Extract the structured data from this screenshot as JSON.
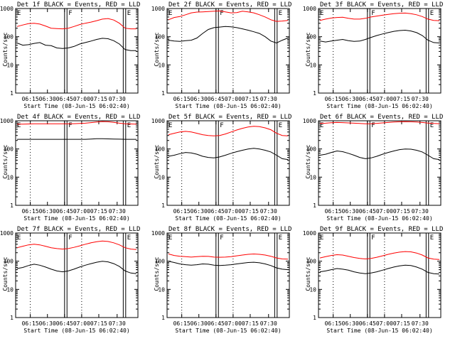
{
  "chart_data": [
    {
      "type": "line",
      "title": "Det 1f BLACK = Events, RED = LLD",
      "xlabel": "Start Time (08-Jun-15 06:02:40)",
      "ylabel": "Counts/sec",
      "series": [
        {
          "name": "Events",
          "color": "#000000",
          "values": [
            60,
            50,
            52,
            58,
            62,
            50,
            48,
            40,
            38,
            40,
            45,
            55,
            62,
            70,
            80,
            88,
            85,
            72,
            55,
            35,
            32,
            32
          ]
        },
        {
          "name": "LLD",
          "color": "#ff0000",
          "values": [
            230,
            260,
            290,
            300,
            280,
            240,
            200,
            195,
            190,
            200,
            230,
            270,
            300,
            330,
            370,
            420,
            440,
            390,
            300,
            200,
            190,
            190
          ]
        }
      ],
      "ymin": 1,
      "ymax": 1000
    },
    {
      "type": "line",
      "title": "Det 2f BLACK = Events, RED = LLD",
      "xlabel": "Start Time (08-Jun-15 06:02:40)",
      "ylabel": "Counts/sec",
      "series": [
        {
          "name": "Events",
          "color": "#000000",
          "values": [
            75,
            70,
            68,
            72,
            75,
            90,
            130,
            180,
            210,
            220,
            230,
            225,
            210,
            190,
            170,
            150,
            130,
            100,
            70,
            60,
            75,
            90
          ]
        },
        {
          "name": "LLD",
          "color": "#ff0000",
          "values": [
            400,
            480,
            520,
            600,
            700,
            750,
            760,
            780,
            800,
            820,
            760,
            700,
            720,
            800,
            760,
            700,
            600,
            500,
            400,
            350,
            360,
            380
          ]
        }
      ],
      "ymin": 1,
      "ymax": 1000
    },
    {
      "type": "line",
      "title": "Det 3f BLACK = Events, RED = LLD",
      "xlabel": "Start Time (08-Jun-15 06:02:40)",
      "ylabel": "Counts/sec",
      "series": [
        {
          "name": "Events",
          "color": "#000000",
          "values": [
            70,
            65,
            70,
            75,
            80,
            72,
            68,
            70,
            80,
            95,
            110,
            125,
            140,
            155,
            165,
            170,
            160,
            140,
            110,
            75,
            62,
            60
          ]
        },
        {
          "name": "LLD",
          "color": "#ff0000",
          "values": [
            380,
            420,
            460,
            480,
            490,
            450,
            420,
            420,
            450,
            500,
            540,
            580,
            620,
            660,
            680,
            690,
            660,
            600,
            520,
            420,
            380,
            370
          ]
        }
      ],
      "ymin": 1,
      "ymax": 1000
    },
    {
      "type": "line",
      "title": "Det 4f BLACK = Events, RED = LLD",
      "xlabel": "Start Time (08-Jun-15 06:02:40)",
      "ylabel": "Counts/sec",
      "series": [
        {
          "name": "Events",
          "color": "#000000",
          "values": [
            220,
            220,
            220,
            220,
            220,
            220,
            220,
            220,
            220,
            220,
            220,
            220,
            220,
            225,
            230,
            230,
            228,
            225,
            222,
            220,
            220,
            220
          ]
        },
        {
          "name": "LLD",
          "color": "#ff0000",
          "values": [
            760,
            760,
            770,
            780,
            780,
            780,
            780,
            780,
            780,
            780,
            790,
            800,
            820,
            860,
            900,
            940,
            920,
            880,
            820,
            780,
            770,
            760
          ]
        }
      ],
      "ymin": 1,
      "ymax": 1000
    },
    {
      "type": "line",
      "title": "Det 5f BLACK = Events, RED = LLD",
      "xlabel": "Start Time (08-Jun-15 06:02:40)",
      "ylabel": "Counts/sec",
      "series": [
        {
          "name": "Events",
          "color": "#000000",
          "values": [
            55,
            60,
            68,
            75,
            72,
            65,
            55,
            50,
            48,
            52,
            60,
            70,
            80,
            90,
            100,
            105,
            100,
            90,
            78,
            60,
            45,
            42
          ]
        },
        {
          "name": "LLD",
          "color": "#ff0000",
          "values": [
            320,
            360,
            400,
            420,
            400,
            360,
            320,
            300,
            290,
            300,
            340,
            400,
            470,
            540,
            600,
            640,
            620,
            560,
            480,
            360,
            300,
            290
          ]
        }
      ],
      "ymin": 1,
      "ymax": 1000
    },
    {
      "type": "line",
      "title": "Det 6f BLACK = Events, RED = LLD",
      "xlabel": "Start Time (08-Jun-15 06:02:40)",
      "ylabel": "Counts/sec",
      "series": [
        {
          "name": "Events",
          "color": "#000000",
          "values": [
            60,
            65,
            75,
            85,
            80,
            70,
            60,
            50,
            45,
            48,
            55,
            65,
            75,
            85,
            95,
            100,
            98,
            90,
            78,
            60,
            45,
            42
          ]
        },
        {
          "name": "LLD",
          "color": "#ff0000",
          "values": [
            800,
            820,
            850,
            870,
            860,
            840,
            820,
            800,
            780,
            790,
            810,
            840,
            870,
            900,
            920,
            930,
            920,
            900,
            870,
            830,
            800,
            790
          ]
        }
      ],
      "ymin": 1,
      "ymax": 1000
    },
    {
      "type": "line",
      "title": "Det 7f BLACK = Events, RED = LLD",
      "xlabel": "Start Time (08-Jun-15 06:02:40)",
      "ylabel": "Counts/sec",
      "series": [
        {
          "name": "Events",
          "color": "#000000",
          "values": [
            55,
            60,
            70,
            78,
            72,
            62,
            52,
            45,
            42,
            45,
            52,
            62,
            72,
            82,
            92,
            100,
            95,
            82,
            65,
            45,
            38,
            36
          ]
        },
        {
          "name": "LLD",
          "color": "#ff0000",
          "values": [
            300,
            340,
            380,
            400,
            380,
            340,
            300,
            280,
            270,
            280,
            310,
            350,
            400,
            450,
            490,
            520,
            500,
            450,
            380,
            300,
            270,
            260
          ]
        }
      ],
      "ymin": 1,
      "ymax": 1000
    },
    {
      "type": "line",
      "title": "Det 8f BLACK = Events, RED = LLD",
      "xlabel": "Start Time (08-Jun-15 06:02:40)",
      "ylabel": "Counts/sec",
      "series": [
        {
          "name": "Events",
          "color": "#000000",
          "values": [
            100,
            90,
            80,
            75,
            72,
            75,
            80,
            78,
            72,
            70,
            72,
            75,
            80,
            85,
            90,
            92,
            88,
            80,
            70,
            58,
            52,
            50
          ]
        },
        {
          "name": "LLD",
          "color": "#ff0000",
          "values": [
            180,
            160,
            150,
            145,
            140,
            145,
            150,
            148,
            140,
            138,
            140,
            145,
            155,
            165,
            175,
            180,
            175,
            165,
            150,
            130,
            120,
            118
          ]
        }
      ],
      "ymin": 1,
      "ymax": 1000
    },
    {
      "type": "line",
      "title": "Det 9f BLACK = Events, RED = LLD",
      "xlabel": "Start Time (08-Jun-15 06:02:40)",
      "ylabel": "Counts/sec",
      "series": [
        {
          "name": "Events",
          "color": "#000000",
          "values": [
            42,
            45,
            50,
            55,
            52,
            48,
            42,
            38,
            36,
            38,
            42,
            48,
            55,
            62,
            68,
            72,
            70,
            62,
            52,
            40,
            36,
            35
          ]
        },
        {
          "name": "LLD",
          "color": "#ff0000",
          "values": [
            130,
            145,
            160,
            170,
            165,
            150,
            135,
            125,
            120,
            125,
            138,
            155,
            175,
            195,
            210,
            220,
            215,
            195,
            165,
            130,
            118,
            115
          ]
        }
      ],
      "ymin": 1,
      "ymax": 1000
    }
  ],
  "common": {
    "yticks": [
      "1000",
      "100",
      "10",
      "1"
    ],
    "xticks": [
      "06:15",
      "06:30",
      "06:45",
      "07:00",
      "07:15",
      "07:30"
    ],
    "markers": [
      "E",
      "F",
      "E"
    ]
  }
}
